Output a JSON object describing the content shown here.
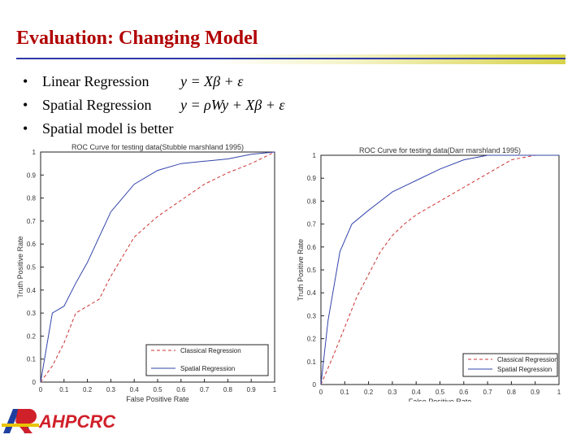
{
  "slide": {
    "title": "Evaluation: Changing Model",
    "bullets": [
      "Linear Regression",
      "Spatial Regression",
      "Spatial model is better"
    ],
    "equations": [
      "y = Xβ + ε",
      "y = ρWy + Xβ + ε"
    ],
    "logo_text": "AHPCRC",
    "colors": {
      "title": "#b00000",
      "rule": "#2f3aa8",
      "band": "#d7d24a",
      "classical": "#cc3333",
      "spatial": "#3344aa"
    }
  },
  "chart_data": [
    {
      "type": "line",
      "title": "ROC Curve for testing data(Stubble marshland 1995)",
      "xlabel": "False Positive Rate",
      "ylabel": "Truth Positive Rate",
      "xlim": [
        0,
        1
      ],
      "ylim": [
        0,
        1
      ],
      "xticks": [
        "0",
        "0.1",
        "0.2",
        "0.3",
        "0.4",
        "0.5",
        "0.6",
        "0.7",
        "0.8",
        "0.9",
        "1"
      ],
      "yticks": [
        "0",
        "0.1",
        "0.2",
        "0.3",
        "0.4",
        "0.5",
        "0.6",
        "0.7",
        "0.8",
        "0.9",
        "1"
      ],
      "legend": [
        "Classical Regression",
        "Spatial Regression"
      ],
      "legend_position": "bottom-right",
      "series": [
        {
          "name": "Classical Regression",
          "style": "dashed",
          "x": [
            0,
            0.05,
            0.1,
            0.15,
            0.2,
            0.25,
            0.3,
            0.4,
            0.5,
            0.6,
            0.7,
            0.8,
            0.9,
            1
          ],
          "y": [
            0,
            0.07,
            0.17,
            0.3,
            0.33,
            0.36,
            0.46,
            0.63,
            0.72,
            0.79,
            0.86,
            0.91,
            0.95,
            1
          ]
        },
        {
          "name": "Spatial Regression",
          "style": "solid",
          "x": [
            0,
            0.05,
            0.1,
            0.15,
            0.2,
            0.3,
            0.4,
            0.45,
            0.5,
            0.6,
            0.7,
            0.8,
            0.9,
            1
          ],
          "y": [
            0,
            0.3,
            0.33,
            0.43,
            0.52,
            0.74,
            0.86,
            0.89,
            0.92,
            0.95,
            0.96,
            0.97,
            0.99,
            1
          ]
        }
      ]
    },
    {
      "type": "line",
      "title": "ROC Curve for testing data(Darr marshland 1995)",
      "xlabel": "False Positive Rate",
      "ylabel": "Truth Positive Rate",
      "xlim": [
        0,
        1
      ],
      "ylim": [
        0,
        1
      ],
      "xticks": [
        "0",
        "0.1",
        "0.2",
        "0.3",
        "0.4",
        "0.5",
        "0.6",
        "0.7",
        "0.8",
        "0.9",
        "1"
      ],
      "yticks": [
        "0",
        "0.1",
        "0.2",
        "0.3",
        "0.4",
        "0.5",
        "0.6",
        "0.7",
        "0.8",
        "0.9",
        "1"
      ],
      "legend": [
        "Classical Regression",
        "Spatial Regression"
      ],
      "legend_position": "bottom-right",
      "series": [
        {
          "name": "Classical Regression",
          "style": "dashed",
          "x": [
            0,
            0.05,
            0.1,
            0.15,
            0.2,
            0.25,
            0.3,
            0.35,
            0.4,
            0.5,
            0.6,
            0.7,
            0.8,
            0.9,
            1
          ],
          "y": [
            0,
            0.12,
            0.25,
            0.38,
            0.48,
            0.58,
            0.65,
            0.7,
            0.74,
            0.8,
            0.86,
            0.92,
            0.98,
            1,
            1
          ]
        },
        {
          "name": "Spatial Regression",
          "style": "solid",
          "x": [
            0,
            0.03,
            0.08,
            0.13,
            0.2,
            0.3,
            0.4,
            0.5,
            0.6,
            0.7,
            0.8,
            0.9,
            1
          ],
          "y": [
            0,
            0.28,
            0.58,
            0.7,
            0.76,
            0.84,
            0.89,
            0.94,
            0.98,
            1,
            1,
            1,
            1
          ]
        }
      ]
    }
  ]
}
